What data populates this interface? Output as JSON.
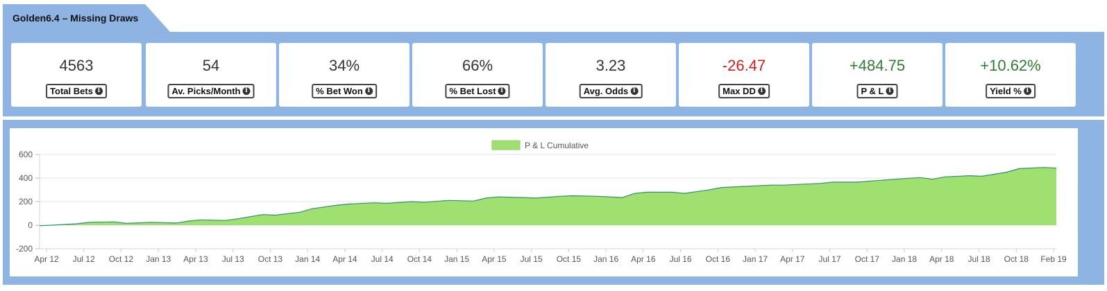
{
  "header": {
    "title": "Golden6.4 – Missing Draws"
  },
  "stats": [
    {
      "value": "4563",
      "label": "Total Bets",
      "tone": "neutral"
    },
    {
      "value": "54",
      "label": "Av. Picks/Month",
      "tone": "neutral"
    },
    {
      "value": "34%",
      "label": "% Bet Won",
      "tone": "neutral"
    },
    {
      "value": "66%",
      "label": "% Bet Lost",
      "tone": "neutral"
    },
    {
      "value": "3.23",
      "label": "Avg. Odds",
      "tone": "neutral"
    },
    {
      "value": "-26.47",
      "label": "Max DD",
      "tone": "negative"
    },
    {
      "value": "+484.75",
      "label": "P & L",
      "tone": "positive"
    },
    {
      "value": "+10.62%",
      "label": "Yield %",
      "tone": "positive"
    }
  ],
  "colors": {
    "band": "#8db4e2",
    "area_fill": "#9fe070",
    "area_line": "#2f8f6f",
    "negative": "#d01f1f",
    "positive": "#2e7d32"
  },
  "chart_data": {
    "type": "area",
    "legend": {
      "label": "P & L Cumulative",
      "position": "top-center"
    },
    "y_ticks": [
      600,
      400,
      200,
      0,
      -200
    ],
    "ylim": [
      -200,
      600
    ],
    "grid": true,
    "x_ticks": [
      "Apr 12",
      "Jul 12",
      "Oct 12",
      "Jan 13",
      "Apr 13",
      "Jul 13",
      "Oct 13",
      "Jan 14",
      "Apr 14",
      "Jul 14",
      "Oct 14",
      "Jan 15",
      "Apr 15",
      "Jul 15",
      "Oct 15",
      "Jan 16",
      "Apr 16",
      "Jul 16",
      "Oct 16",
      "Jan 17",
      "Apr 17",
      "Jul 17",
      "Oct 17",
      "Jan 18",
      "Apr 18",
      "Jul 18",
      "Oct 18",
      "Feb 19"
    ],
    "series": [
      {
        "name": "P & L Cumulative",
        "x": [
          "2012-04",
          "2012-05",
          "2012-07",
          "2012-08",
          "2012-10",
          "2012-11",
          "2013-01",
          "2013-03",
          "2013-04",
          "2013-05",
          "2013-07",
          "2013-08",
          "2013-10",
          "2013-11",
          "2014-01",
          "2014-02",
          "2014-04",
          "2014-05",
          "2014-07",
          "2014-08",
          "2014-10",
          "2014-11",
          "2015-01",
          "2015-03",
          "2015-04",
          "2015-05",
          "2015-07",
          "2015-08",
          "2015-10",
          "2015-11",
          "2016-01",
          "2016-03",
          "2016-04",
          "2016-05",
          "2016-07",
          "2016-08",
          "2016-10",
          "2016-11",
          "2017-01",
          "2017-03",
          "2017-04",
          "2017-05",
          "2017-07",
          "2017-08",
          "2017-10",
          "2017-11",
          "2018-01",
          "2018-03",
          "2018-04",
          "2018-05",
          "2018-07",
          "2018-08",
          "2018-10",
          "2018-11",
          "2019-01",
          "2019-02"
        ],
        "values": [
          -5,
          0,
          12,
          25,
          28,
          15,
          25,
          18,
          35,
          45,
          40,
          55,
          90,
          85,
          110,
          140,
          170,
          180,
          190,
          185,
          200,
          195,
          210,
          205,
          230,
          240,
          235,
          230,
          245,
          250,
          245,
          235,
          270,
          280,
          280,
          270,
          300,
          320,
          330,
          340,
          340,
          345,
          355,
          365,
          365,
          375,
          390,
          405,
          390,
          410,
          420,
          415,
          450,
          480,
          490,
          485
        ]
      }
    ]
  }
}
